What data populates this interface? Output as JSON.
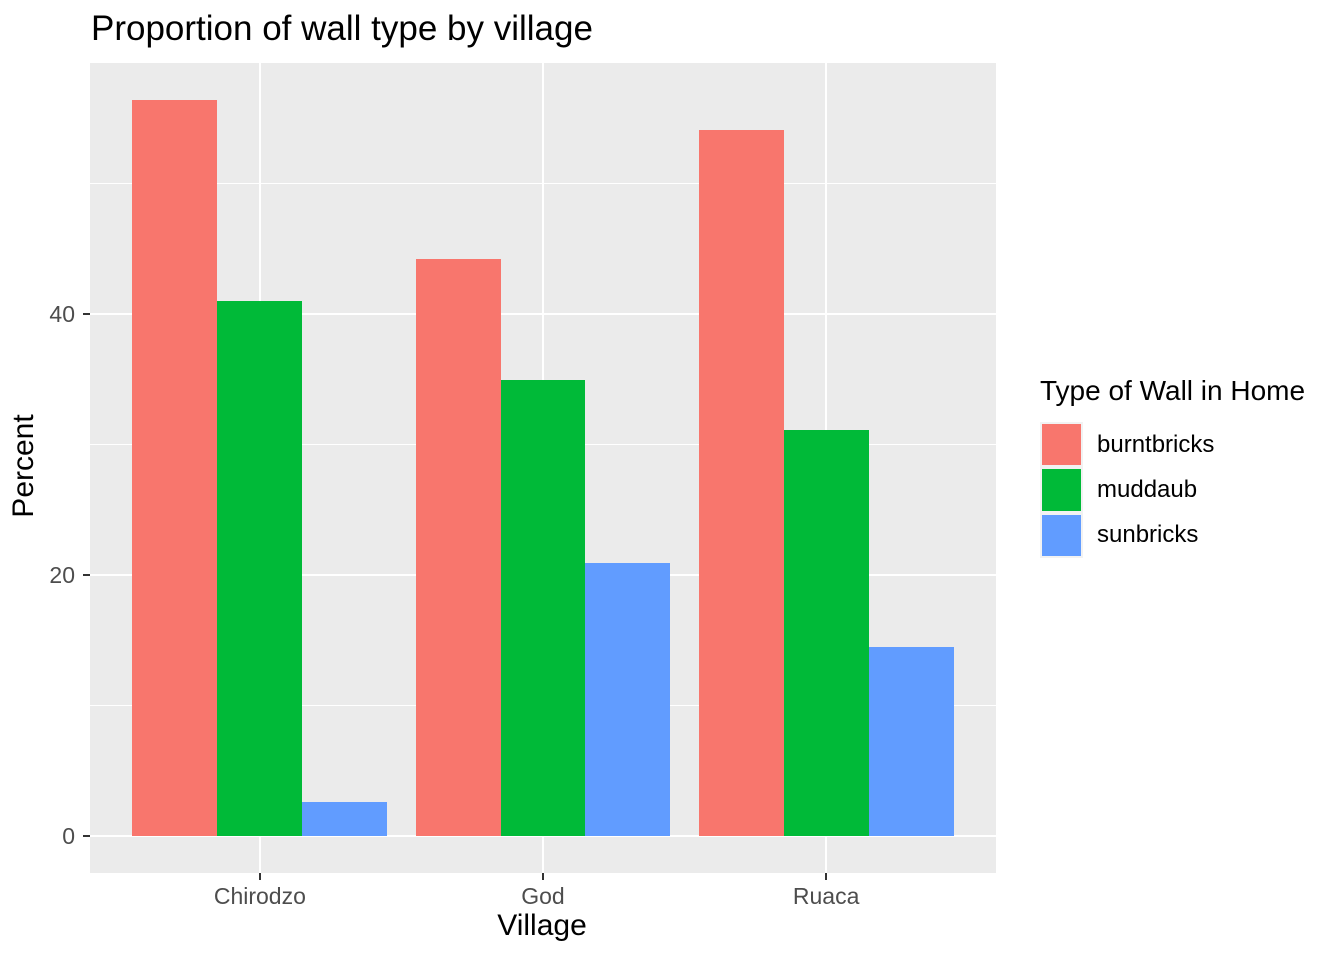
{
  "title": "Proportion of wall type by village",
  "chart_data": {
    "type": "bar",
    "bar_layout": "dodge",
    "title": "Proportion of wall type by village",
    "xlabel": "Village",
    "ylabel": "Percent",
    "categories": [
      "Chirodzo",
      "God",
      "Ruaca"
    ],
    "series": [
      {
        "name": "burntbricks",
        "color": "#F8766D",
        "values": [
          56.4,
          44.2,
          54.1
        ]
      },
      {
        "name": "muddaub",
        "color": "#00BA38",
        "values": [
          41.0,
          34.9,
          31.1
        ]
      },
      {
        "name": "sunbricks",
        "color": "#619CFF",
        "values": [
          2.6,
          20.9,
          14.5
        ]
      }
    ],
    "y_ticks": [
      0,
      20,
      40
    ],
    "y_minor_ticks": [
      10,
      30,
      50
    ],
    "ylim": [
      -2.8,
      59.2
    ],
    "grid": true,
    "legend_title": "Type of Wall in Home",
    "legend_position": "right",
    "colors": {
      "panel_bg": "#EBEBEB",
      "gridline": "#FFFFFF",
      "tick_mark": "#333333",
      "tick_label": "#4D4D4D",
      "text": "#000000",
      "background": "#FFFFFF"
    }
  }
}
